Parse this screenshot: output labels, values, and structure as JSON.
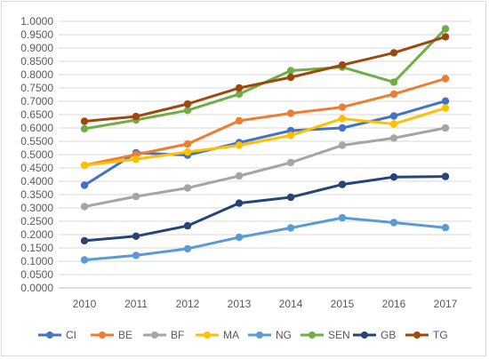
{
  "chart_data": {
    "type": "line",
    "title": "",
    "xlabel": "",
    "ylabel": "",
    "x": [
      "2010",
      "2011",
      "2012",
      "2013",
      "2014",
      "2015",
      "2016",
      "2017"
    ],
    "ylim": [
      0.0,
      1.0
    ],
    "ytick_step": 0.05,
    "ytick_labels": [
      "0.0000",
      "0.0500",
      "0.1000",
      "0.1500",
      "0.2000",
      "0.2500",
      "0.3000",
      "0.3500",
      "0.4000",
      "0.4500",
      "0.5000",
      "0.5500",
      "0.6000",
      "0.6500",
      "0.7000",
      "0.7500",
      "0.8000",
      "0.8500",
      "0.9000",
      "0.9500",
      "1.0000"
    ],
    "grid": true,
    "legend_position": "bottom",
    "series": [
      {
        "name": "CI",
        "color": "#4472C4",
        "values": [
          0.385,
          0.507,
          0.498,
          0.545,
          0.59,
          0.6,
          0.645,
          0.701
        ]
      },
      {
        "name": "BE",
        "color": "#ED7D31",
        "values": [
          0.46,
          0.5,
          0.54,
          0.627,
          0.655,
          0.678,
          0.727,
          0.785
        ]
      },
      {
        "name": "BF",
        "color": "#A5A5A5",
        "values": [
          0.305,
          0.343,
          0.375,
          0.42,
          0.47,
          0.535,
          0.562,
          0.6
        ]
      },
      {
        "name": "MA",
        "color": "#FFC000",
        "values": [
          0.46,
          0.483,
          0.51,
          0.535,
          0.572,
          0.635,
          0.615,
          0.675
        ]
      },
      {
        "name": "NG",
        "color": "#5B9BD5",
        "values": [
          0.105,
          0.122,
          0.147,
          0.19,
          0.225,
          0.263,
          0.245,
          0.226
        ]
      },
      {
        "name": "SEN",
        "color": "#70AD47",
        "values": [
          0.597,
          0.63,
          0.666,
          0.727,
          0.815,
          0.828,
          0.772,
          0.972
        ]
      },
      {
        "name": "GB",
        "color": "#264478",
        "values": [
          0.177,
          0.194,
          0.233,
          0.318,
          0.34,
          0.388,
          0.416,
          0.418
        ]
      },
      {
        "name": "TG",
        "color": "#9E480E",
        "values": [
          0.625,
          0.643,
          0.69,
          0.75,
          0.79,
          0.836,
          0.882,
          0.942
        ]
      }
    ]
  }
}
